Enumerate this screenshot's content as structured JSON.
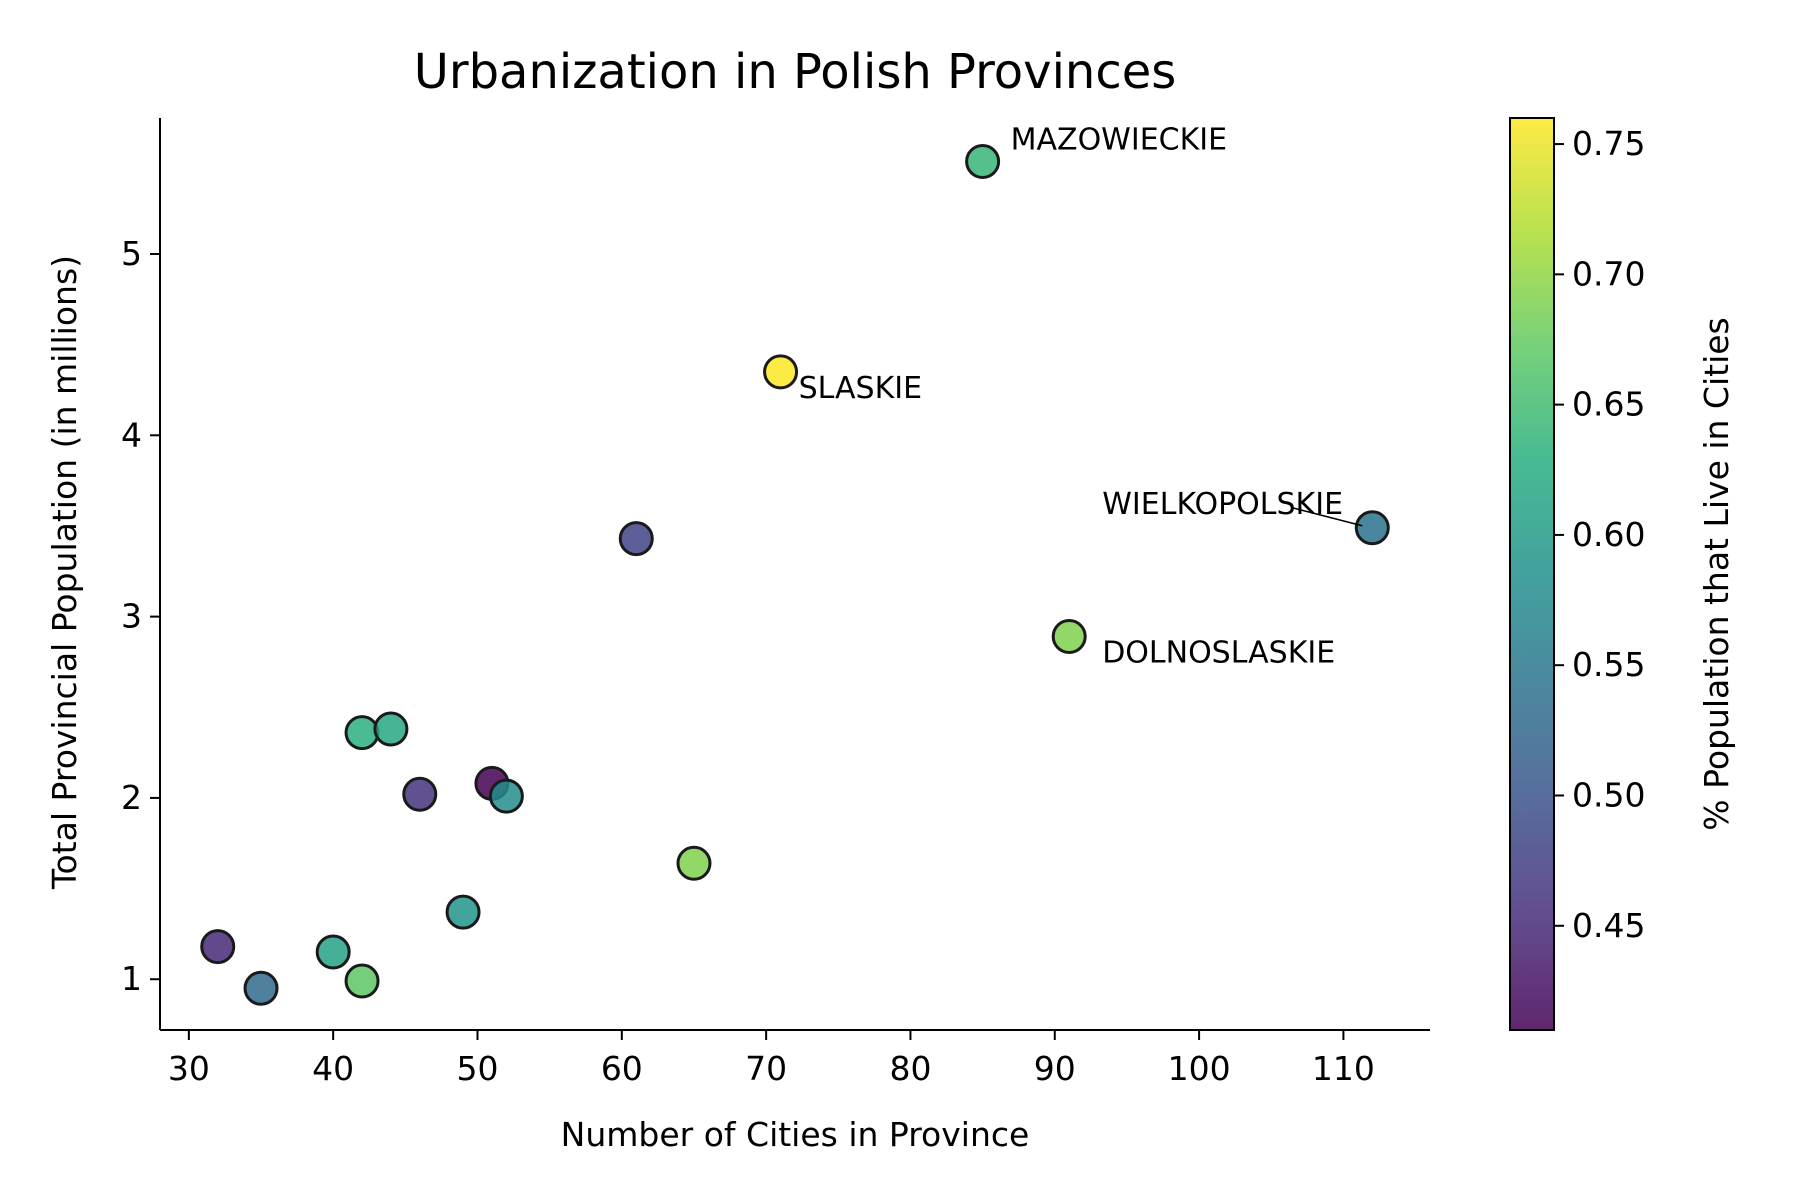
{
  "chart_data": {
    "type": "scatter",
    "title": "Urbanization in Polish Provinces",
    "xlabel": "Number of Cities in Province",
    "ylabel": "Total Provincial Population (in millions)",
    "xlim": [
      28,
      116
    ],
    "ylim": [
      0.72,
      5.75
    ],
    "xticks": [
      30,
      40,
      50,
      60,
      70,
      80,
      90,
      100,
      110
    ],
    "yticks": [
      1,
      2,
      3,
      4,
      5
    ],
    "colorbar": {
      "label": "% Population that Live in Cities",
      "range": [
        0.41,
        0.76
      ],
      "ticks": [
        0.45,
        0.5,
        0.55,
        0.6,
        0.65,
        0.7,
        0.75
      ],
      "colormap": "viridis"
    },
    "points": [
      {
        "x": 85,
        "y": 5.51,
        "c": 0.64,
        "label": "MAZOWIECKIE"
      },
      {
        "x": 71,
        "y": 4.35,
        "c": 0.76,
        "label": "SLASKIE"
      },
      {
        "x": 112,
        "y": 3.49,
        "c": 0.54,
        "label": "WIELKOPOLSKIE"
      },
      {
        "x": 91,
        "y": 2.89,
        "c": 0.69,
        "label": "DOLNOSLASKIE"
      },
      {
        "x": 61,
        "y": 3.43,
        "c": 0.48,
        "label": ""
      },
      {
        "x": 42,
        "y": 2.36,
        "c": 0.63,
        "label": ""
      },
      {
        "x": 44,
        "y": 2.38,
        "c": 0.62,
        "label": ""
      },
      {
        "x": 46,
        "y": 2.02,
        "c": 0.46,
        "label": ""
      },
      {
        "x": 51,
        "y": 2.08,
        "c": 0.41,
        "label": ""
      },
      {
        "x": 52,
        "y": 2.01,
        "c": 0.58,
        "label": ""
      },
      {
        "x": 65,
        "y": 1.64,
        "c": 0.69,
        "label": ""
      },
      {
        "x": 49,
        "y": 1.37,
        "c": 0.59,
        "label": ""
      },
      {
        "x": 32,
        "y": 1.18,
        "c": 0.45,
        "label": ""
      },
      {
        "x": 40,
        "y": 1.15,
        "c": 0.61,
        "label": ""
      },
      {
        "x": 35,
        "y": 0.95,
        "c": 0.53,
        "label": ""
      },
      {
        "x": 42,
        "y": 0.99,
        "c": 0.67,
        "label": ""
      }
    ]
  }
}
